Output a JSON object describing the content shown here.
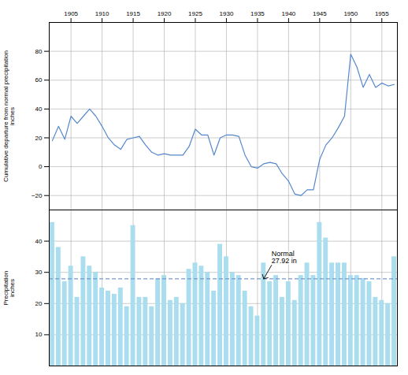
{
  "chart_data": [
    {
      "type": "line",
      "ylabel": "Cumulative departure from normal precipitation\ninches",
      "x": [
        1902,
        1903,
        1904,
        1905,
        1906,
        1907,
        1908,
        1909,
        1910,
        1911,
        1912,
        1913,
        1914,
        1915,
        1916,
        1917,
        1918,
        1919,
        1920,
        1921,
        1922,
        1923,
        1924,
        1925,
        1926,
        1927,
        1928,
        1929,
        1930,
        1931,
        1932,
        1933,
        1934,
        1935,
        1936,
        1937,
        1938,
        1939,
        1940,
        1941,
        1942,
        1943,
        1944,
        1945,
        1946,
        1947,
        1948,
        1949,
        1950,
        1951,
        1952,
        1953,
        1954,
        1955,
        1956,
        1957
      ],
      "values": [
        18,
        28,
        19,
        35,
        30,
        35,
        40,
        35,
        28,
        20,
        15,
        12,
        19,
        20,
        21,
        15,
        10,
        8,
        9,
        8,
        8,
        8,
        14,
        26,
        22,
        22,
        8,
        20,
        22,
        22,
        21,
        8,
        0,
        -1,
        2,
        3,
        2,
        -5,
        -10,
        -19,
        -20,
        -16,
        -16,
        5,
        15,
        20,
        27,
        35,
        78,
        69,
        55,
        64,
        55,
        58,
        56,
        57
      ],
      "color": "#5588cc",
      "xlim": [
        1901.5,
        1957.5
      ],
      "xticks": [
        1905,
        1910,
        1915,
        1920,
        1925,
        1930,
        1935,
        1940,
        1945,
        1950,
        1955
      ],
      "ylim": [
        -30,
        100
      ],
      "yticks": [
        -20,
        0,
        20,
        40,
        60,
        80
      ],
      "grid": true
    },
    {
      "type": "bar",
      "ylabel": "Precipitation\ninches",
      "x": [
        1902,
        1903,
        1904,
        1905,
        1906,
        1907,
        1908,
        1909,
        1910,
        1911,
        1912,
        1913,
        1914,
        1915,
        1916,
        1917,
        1918,
        1919,
        1920,
        1921,
        1922,
        1923,
        1924,
        1925,
        1926,
        1927,
        1928,
        1929,
        1930,
        1931,
        1932,
        1933,
        1934,
        1935,
        1936,
        1937,
        1938,
        1939,
        1940,
        1941,
        1942,
        1943,
        1944,
        1945,
        1946,
        1947,
        1948,
        1949,
        1950,
        1951,
        1952,
        1953,
        1954,
        1955,
        1956,
        1957
      ],
      "values": [
        46,
        38,
        27,
        32,
        22,
        35,
        32,
        30,
        25,
        24,
        23,
        25,
        19,
        45,
        22,
        22,
        19,
        28,
        29,
        21,
        22,
        20,
        31,
        33,
        32,
        30,
        24,
        39,
        35,
        30,
        29,
        24,
        19,
        16,
        33,
        27,
        29,
        22,
        27,
        21,
        29,
        33,
        29,
        46,
        41,
        33,
        33,
        33,
        29,
        29,
        28,
        27,
        22,
        21,
        20,
        35
      ],
      "color": "#aadded",
      "reference_line": {
        "y": 27.92,
        "color": "#7799cc",
        "line_style": "dashed"
      },
      "annotations": [
        {
          "text": "Normal\n27.92 in",
          "x": 1936,
          "y": 27.92
        }
      ],
      "xlim": [
        1901.5,
        1957.5
      ],
      "xticks": [
        1905,
        1910,
        1915,
        1920,
        1925,
        1930,
        1935,
        1940,
        1945,
        1950,
        1955
      ],
      "ylim": [
        0,
        50
      ],
      "yticks": [
        10,
        20,
        30,
        40
      ],
      "grid": true,
      "tick_labels": "y"
    }
  ]
}
